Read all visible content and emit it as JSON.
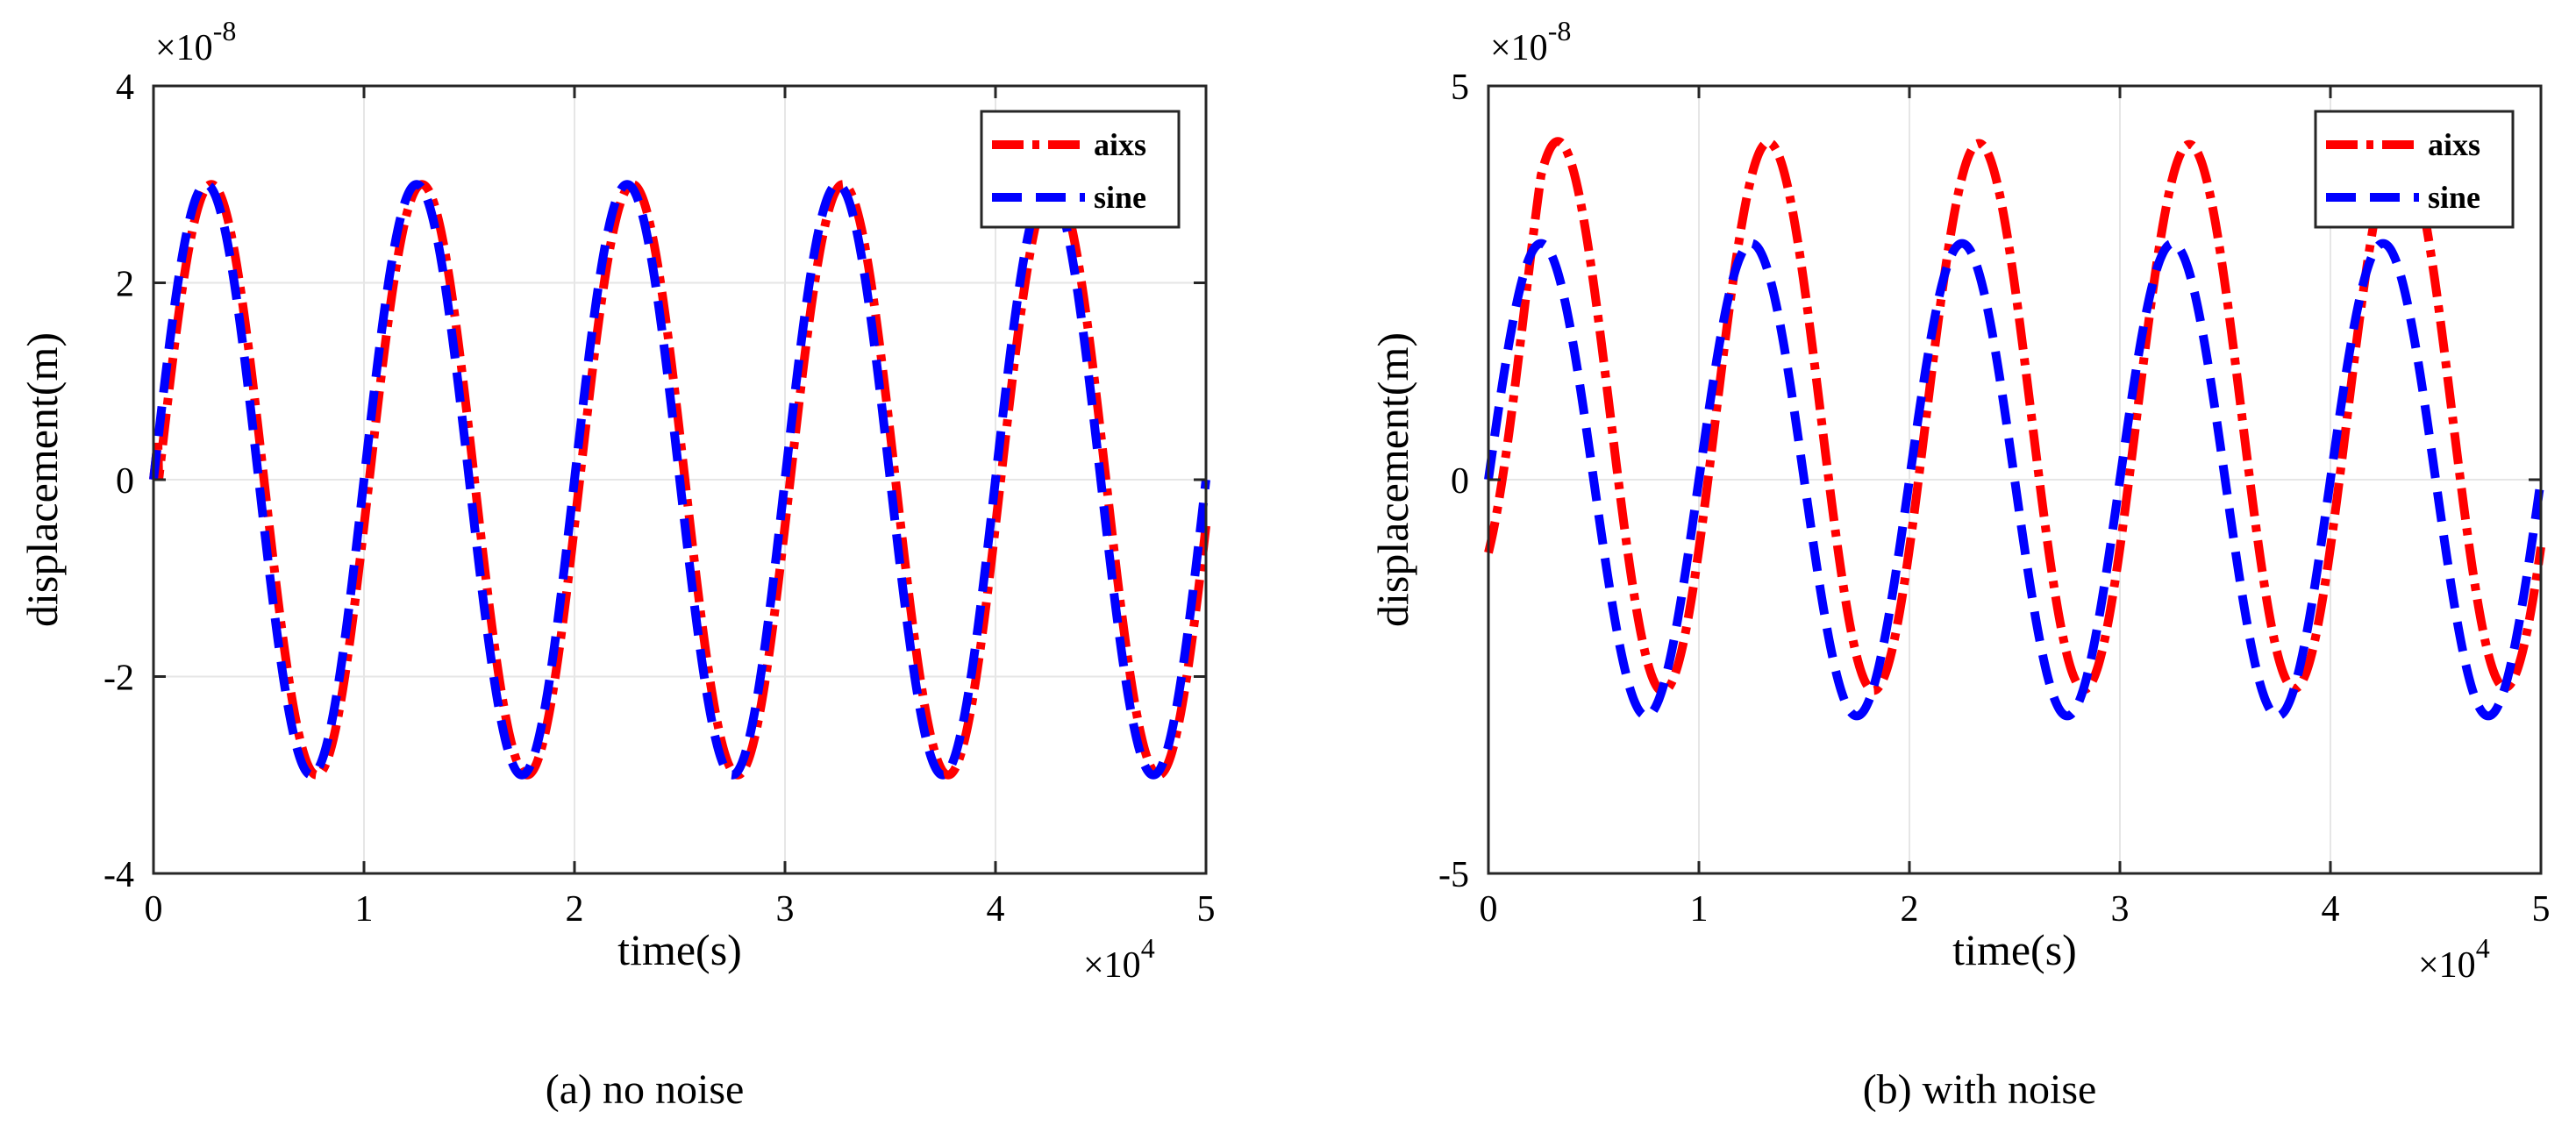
{
  "chart_data": [
    {
      "type": "line",
      "caption": "(a) no noise",
      "xlabel": "time(s)",
      "ylabel": "displacement(m)",
      "xlim": [
        0,
        50000
      ],
      "ylim": [
        -4e-08,
        4e-08
      ],
      "x_ticks": [
        0,
        10000,
        20000,
        30000,
        40000,
        50000
      ],
      "x_tick_labels": [
        "0",
        "1",
        "2",
        "3",
        "4",
        "5"
      ],
      "y_ticks": [
        -4e-08,
        -2e-08,
        0,
        2e-08,
        4e-08
      ],
      "y_tick_labels": [
        "-4",
        "-2",
        "0",
        "2",
        "4"
      ],
      "x_exponent": {
        "base": "×10",
        "power": "4"
      },
      "y_exponent": {
        "base": "×10",
        "power": "-8"
      },
      "grid": true,
      "legend_position": "top-right",
      "series": [
        {
          "name": "aixs",
          "color": "#ff0000",
          "style": "dash-dot",
          "amplitude": 3e-08,
          "period": 10000,
          "phase_shift": 250,
          "damping": 0
        },
        {
          "name": "sine",
          "color": "#0000ff",
          "style": "dashed",
          "amplitude": 3e-08,
          "period": 10000,
          "phase_shift": 0,
          "damping": 0
        }
      ]
    },
    {
      "type": "line",
      "caption": "(b) with noise",
      "xlabel": "time(s)",
      "ylabel": "displacement(m)",
      "xlim": [
        0,
        50000
      ],
      "ylim": [
        -5e-08,
        5e-08
      ],
      "x_ticks": [
        0,
        10000,
        20000,
        30000,
        40000,
        50000
      ],
      "x_tick_labels": [
        "0",
        "1",
        "2",
        "3",
        "4",
        "5"
      ],
      "y_ticks": [
        -5e-08,
        0,
        5e-08
      ],
      "y_tick_labels": [
        "-5",
        "0",
        "5"
      ],
      "x_exponent": {
        "base": "×10",
        "power": "4"
      },
      "y_exponent": {
        "base": "×10",
        "power": "-8"
      },
      "grid": true,
      "legend_position": "top-right",
      "series": [
        {
          "name": "aixs",
          "color": "#ff0000",
          "style": "dash-dot",
          "mean": 8e-09,
          "amplitude": 3.5e-08,
          "period": 10000,
          "phase_shift": 800,
          "damping": 0.0036
        },
        {
          "name": "sine",
          "color": "#0000ff",
          "style": "dashed",
          "mean": 0,
          "amplitude": 3e-08,
          "period": 10000,
          "phase_shift": 0,
          "damping": 0
        }
      ]
    }
  ]
}
